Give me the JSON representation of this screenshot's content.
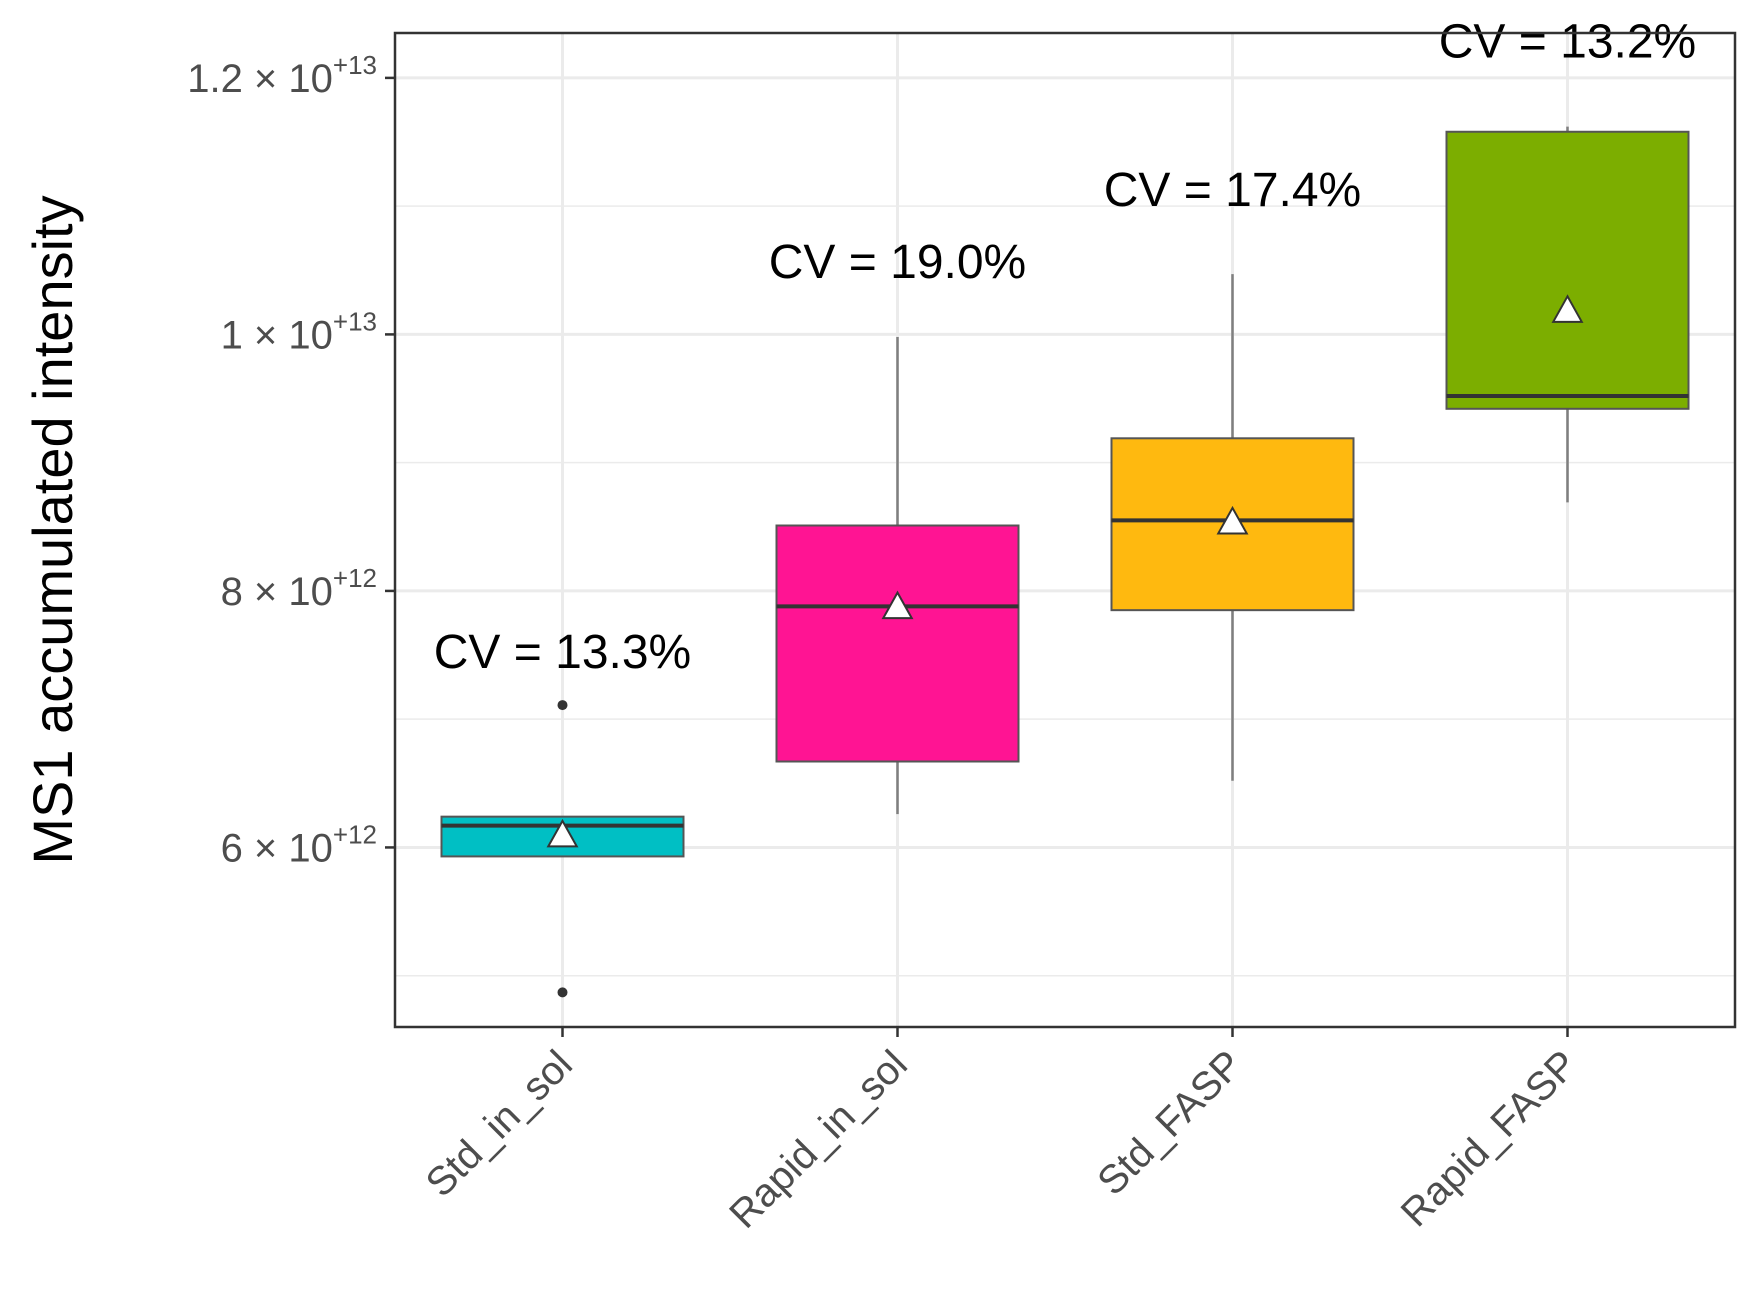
{
  "chart_data": {
    "type": "box",
    "title": "",
    "xlabel": "",
    "ylabel": "MS1 accumulated intensity",
    "ylim": [
      4600000000000.0,
      12350000000000.0
    ],
    "grid": true,
    "y_ticks": [
      {
        "value": 6000000000000.0,
        "mantissa": "6",
        "exponent": "+12"
      },
      {
        "value": 8000000000000.0,
        "mantissa": "8",
        "exponent": "+12"
      },
      {
        "value": 10000000000000.0,
        "mantissa": "1",
        "exponent": "+13"
      },
      {
        "value": 12000000000000.0,
        "mantissa": "1.2",
        "exponent": "+13"
      }
    ],
    "y_minor_ticks": [
      5000000000000.0,
      7000000000000.0,
      9000000000000.0,
      11000000000000.0
    ],
    "times_sign": "×",
    "tick_base": "10",
    "categories": [
      "Std_in_sol",
      "Rapid_in_sol",
      "Std_FASP",
      "Rapid_FASP"
    ],
    "series": [
      {
        "name": "Std_in_sol",
        "color": "#00BFC4",
        "q1": 5930000000000.0,
        "median": 6170000000000.0,
        "q3": 6240000000000.0,
        "whisker_low": 5930000000000.0,
        "whisker_high": 6240000000000.0,
        "mean": 6090000000000.0,
        "outliers": [
          7110000000000.0,
          4870000000000.0
        ],
        "cv_label": "CV = 13.3%"
      },
      {
        "name": "Rapid_in_sol",
        "color": "#FF1493",
        "q1": 6670000000000.0,
        "median": 7880000000000.0,
        "q3": 8510000000000.0,
        "whisker_low": 6260000000000.0,
        "whisker_high": 9980000000000.0,
        "mean": 7870000000000.0,
        "outliers": [],
        "cv_label": "CV = 19.0%"
      },
      {
        "name": "Std_FASP",
        "color": "#FFB90F",
        "q1": 7850000000000.0,
        "median": 8550000000000.0,
        "q3": 9190000000000.0,
        "whisker_low": 6520000000000.0,
        "whisker_high": 10470000000000.0,
        "mean": 8530000000000.0,
        "outliers": [],
        "cv_label": "CV = 17.4%"
      },
      {
        "name": "Rapid_FASP",
        "color": "#7CAE00",
        "q1": 9420000000000.0,
        "median": 9520000000000.0,
        "q3": 11580000000000.0,
        "whisker_low": 8690000000000.0,
        "whisker_high": 11620000000000.0,
        "mean": 10180000000000.0,
        "outliers": [],
        "cv_label": "CV = 13.2%"
      }
    ],
    "cv_label_values": [
      7400000000000.0,
      10440000000000.0,
      11000000000000.0,
      12160000000000.0
    ]
  }
}
